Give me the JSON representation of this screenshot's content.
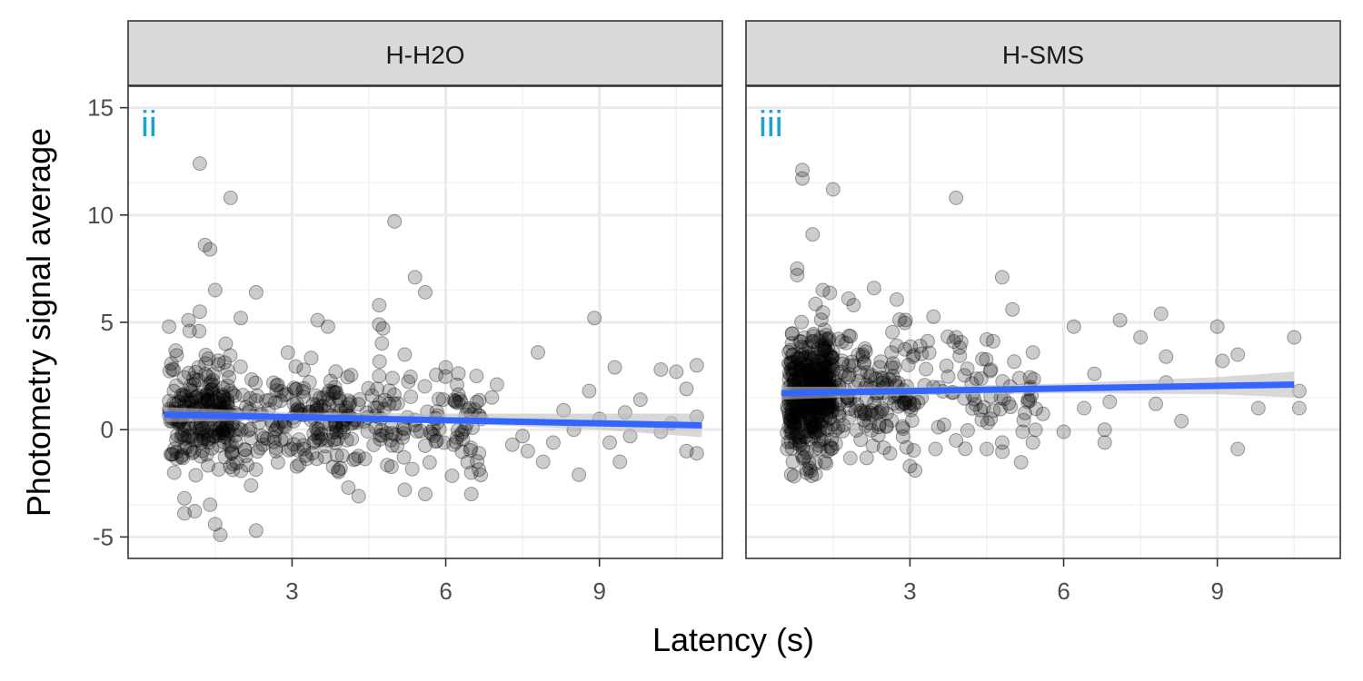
{
  "chart_data": {
    "type": "scatter",
    "xlabel": "Latency (s)",
    "ylabel": "Photometry signal average",
    "xlim": [
      -0.2,
      11.4
    ],
    "ylim": [
      -6,
      16
    ],
    "x_ticks": [
      3,
      6,
      9
    ],
    "y_ticks": [
      -5,
      0,
      5,
      10,
      15
    ],
    "grid": true,
    "point_color": "#000000",
    "point_alpha": 0.2,
    "fit_color": "#3366FF",
    "ribbon_color": "#BEBEBE",
    "panels": [
      {
        "strip_label": "H-H2O",
        "tag": "ii",
        "tag_color": "#1AA3D0",
        "fit_line": {
          "x": [
            0.5,
            11.0
          ],
          "y": [
            0.7,
            0.2
          ]
        },
        "fit_ribbon": {
          "x": [
            0.5,
            3.0,
            6.0,
            9.0,
            11.0
          ],
          "lower": [
            0.35,
            0.45,
            0.3,
            0.0,
            -0.35
          ],
          "upper": [
            1.05,
            0.8,
            0.75,
            0.75,
            0.75
          ]
        },
        "outliers": [
          [
            1.2,
            12.4
          ],
          [
            1.8,
            10.8
          ],
          [
            1.3,
            8.6
          ],
          [
            1.4,
            8.4
          ],
          [
            5.0,
            9.7
          ],
          [
            5.4,
            7.1
          ],
          [
            1.5,
            6.5
          ],
          [
            2.3,
            6.4
          ],
          [
            5.6,
            6.4
          ],
          [
            1.2,
            5.5
          ],
          [
            4.7,
            5.8
          ],
          [
            3.5,
            5.1
          ],
          [
            3.7,
            4.8
          ],
          [
            4.7,
            4.9
          ],
          [
            2.0,
            5.2
          ],
          [
            8.9,
            5.2
          ],
          [
            0.6,
            4.8
          ],
          [
            1.0,
            4.6
          ],
          [
            7.8,
            3.6
          ],
          [
            5.2,
            3.5
          ],
          [
            6.0,
            2.9
          ],
          [
            7.0,
            2.1
          ],
          [
            9.3,
            2.9
          ],
          [
            10.2,
            2.8
          ],
          [
            10.5,
            2.7
          ],
          [
            10.9,
            3.0
          ],
          [
            9.8,
            1.4
          ],
          [
            10.7,
            1.9
          ],
          [
            6.6,
            2.5
          ],
          [
            0.7,
            -2.0
          ],
          [
            0.9,
            -3.2
          ],
          [
            0.9,
            -3.9
          ],
          [
            1.1,
            -3.8
          ],
          [
            1.4,
            -3.5
          ],
          [
            1.5,
            -4.4
          ],
          [
            1.6,
            -4.9
          ],
          [
            2.3,
            -4.7
          ],
          [
            2.2,
            -2.6
          ],
          [
            4.1,
            -2.7
          ],
          [
            4.3,
            -3.1
          ],
          [
            5.2,
            -2.8
          ],
          [
            5.6,
            -3.0
          ],
          [
            6.5,
            -3.0
          ],
          [
            6.5,
            -2.0
          ],
          [
            8.6,
            -2.1
          ],
          [
            9.4,
            -1.5
          ],
          [
            7.9,
            -1.5
          ],
          [
            10.7,
            -1.0
          ],
          [
            10.9,
            -1.1
          ],
          [
            9.2,
            -0.6
          ],
          [
            8.1,
            -0.6
          ],
          [
            6.7,
            0.5
          ],
          [
            7.5,
            -0.3
          ],
          [
            9.0,
            0.5
          ],
          [
            10.4,
            0.3
          ],
          [
            10.9,
            0.6
          ],
          [
            7.3,
            -0.7
          ],
          [
            8.3,
            0.9
          ],
          [
            9.6,
            -0.3
          ],
          [
            10.2,
            -0.1
          ],
          [
            8.8,
            1.8
          ],
          [
            7.6,
            -1.0
          ],
          [
            6.3,
            1.3
          ],
          [
            6.9,
            1.5
          ],
          [
            9.5,
            0.8
          ],
          [
            8.5,
            0.0
          ]
        ]
      },
      {
        "strip_label": "H-SMS",
        "tag": "iii",
        "tag_color": "#1AA3D0",
        "fit_line": {
          "x": [
            0.5,
            10.5
          ],
          "y": [
            1.7,
            2.1
          ]
        },
        "fit_ribbon": {
          "x": [
            0.5,
            3.0,
            6.0,
            9.0,
            10.5
          ],
          "lower": [
            1.4,
            1.6,
            1.7,
            1.65,
            1.5
          ],
          "upper": [
            2.0,
            2.0,
            2.15,
            2.45,
            2.7
          ]
        },
        "outliers": [
          [
            0.9,
            12.1
          ],
          [
            0.9,
            11.7
          ],
          [
            1.5,
            11.2
          ],
          [
            1.1,
            9.1
          ],
          [
            3.9,
            10.8
          ],
          [
            0.8,
            7.5
          ],
          [
            0.8,
            7.2
          ],
          [
            1.3,
            6.5
          ],
          [
            2.3,
            6.6
          ],
          [
            1.8,
            6.1
          ],
          [
            1.9,
            5.8
          ],
          [
            4.8,
            7.1
          ],
          [
            5.0,
            5.6
          ],
          [
            3.9,
            4.3
          ],
          [
            4.5,
            4.2
          ],
          [
            6.2,
            4.8
          ],
          [
            7.1,
            5.1
          ],
          [
            7.9,
            5.4
          ],
          [
            7.5,
            4.3
          ],
          [
            9.0,
            4.8
          ],
          [
            10.5,
            4.3
          ],
          [
            8.0,
            3.4
          ],
          [
            5.4,
            3.6
          ],
          [
            3.2,
            3.9
          ],
          [
            9.4,
            3.5
          ],
          [
            9.1,
            3.2
          ],
          [
            9.8,
            1.0
          ],
          [
            10.6,
            1.0
          ],
          [
            10.6,
            1.8
          ],
          [
            9.4,
            -0.9
          ],
          [
            8.3,
            0.4
          ],
          [
            6.8,
            0.0
          ],
          [
            6.8,
            -0.6
          ],
          [
            6.0,
            -0.1
          ],
          [
            5.4,
            -0.6
          ],
          [
            5.2,
            -0.1
          ],
          [
            4.8,
            -0.6
          ],
          [
            4.5,
            -0.9
          ],
          [
            3.5,
            -0.9
          ],
          [
            3.1,
            -1.9
          ],
          [
            3.0,
            -1.7
          ],
          [
            3.9,
            -0.5
          ],
          [
            6.4,
            1.0
          ],
          [
            6.6,
            2.6
          ],
          [
            6.9,
            1.3
          ],
          [
            8.0,
            2.2
          ],
          [
            7.8,
            1.2
          ]
        ]
      }
    ]
  }
}
